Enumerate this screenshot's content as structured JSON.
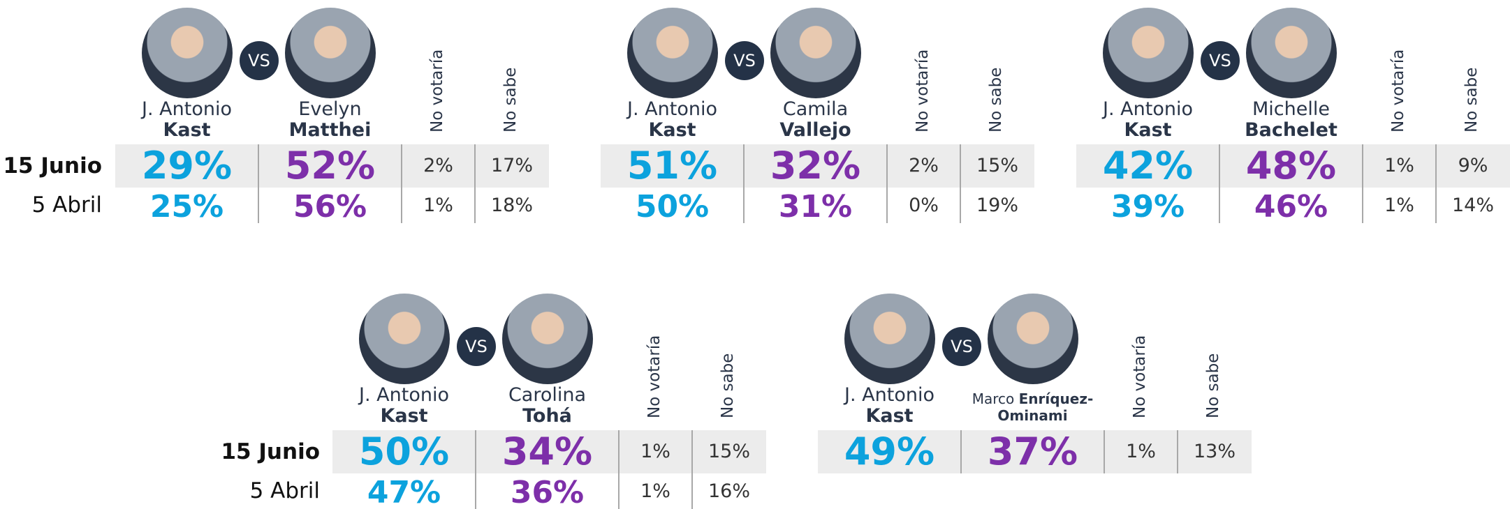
{
  "groups": [
    {
      "row_labels": [
        "15 Junio",
        "5 Abril"
      ],
      "panels": [
        {
          "a": {
            "first": "J. Antonio",
            "last": "Kast"
          },
          "vs": "VS",
          "b": {
            "first": "Evelyn",
            "last": "Matthei"
          },
          "headers": [
            "No votaría",
            "No sabe"
          ],
          "rows": [
            [
              "29%",
              "52%",
              "2%",
              "17%"
            ],
            [
              "25%",
              "56%",
              "1%",
              "18%"
            ]
          ]
        },
        {
          "a": {
            "first": "J. Antonio",
            "last": "Kast"
          },
          "vs": "VS",
          "b": {
            "first": "Camila",
            "last": "Vallejo"
          },
          "headers": [
            "No votaría",
            "No sabe"
          ],
          "rows": [
            [
              "51%",
              "32%",
              "2%",
              "15%"
            ],
            [
              "50%",
              "31%",
              "0%",
              "19%"
            ]
          ]
        },
        {
          "a": {
            "first": "J. Antonio",
            "last": "Kast"
          },
          "vs": "VS",
          "b": {
            "first": "Michelle",
            "last": "Bachelet"
          },
          "headers": [
            "No votaría",
            "No sabe"
          ],
          "rows": [
            [
              "42%",
              "48%",
              "1%",
              "9%"
            ],
            [
              "39%",
              "46%",
              "1%",
              "14%"
            ]
          ]
        }
      ]
    },
    {
      "row_labels": [
        "15 Junio",
        "5 Abril"
      ],
      "panels": [
        {
          "a": {
            "first": "J. Antonio",
            "last": "Kast"
          },
          "vs": "VS",
          "b": {
            "first": "Carolina",
            "last": "Tohá"
          },
          "headers": [
            "No votaría",
            "No sabe"
          ],
          "rows": [
            [
              "50%",
              "34%",
              "1%",
              "15%"
            ],
            [
              "47%",
              "36%",
              "1%",
              "16%"
            ]
          ]
        },
        {
          "a": {
            "first": "J. Antonio",
            "last": "Kast"
          },
          "vs": "VS",
          "b": {
            "first": "Marco",
            "last": "Enríquez-Ominami"
          },
          "headers": [
            "No votaría",
            "No sabe"
          ],
          "rows": [
            [
              "49%",
              "37%",
              "1%",
              "13%"
            ]
          ]
        }
      ]
    }
  ]
}
